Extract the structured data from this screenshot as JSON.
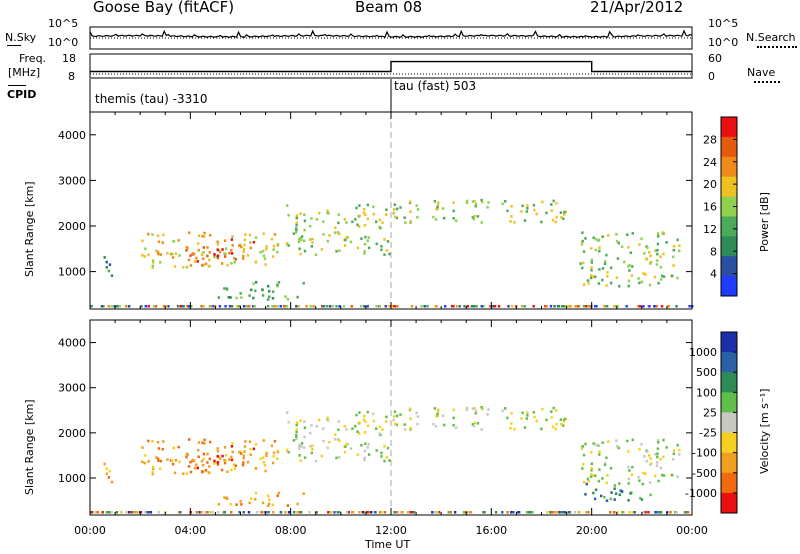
{
  "header": {
    "station": "Goose Bay (fitACF)",
    "beam": "Beam 08",
    "date": "21/Apr/2012"
  },
  "side_labels": {
    "nsky": "N.Sky",
    "nsearch": "N.Search",
    "freq_line1": "Freq.",
    "freq_line2": "[MHz]",
    "nave": "Nave",
    "cpid": "CPID"
  },
  "noise_panel": {
    "left_ticks": [
      "10^5",
      "10^0"
    ],
    "right_ticks": [
      "10^5",
      "10^0"
    ]
  },
  "freq_panel": {
    "left_ticks": [
      "18",
      "8"
    ],
    "right_ticks": [
      "60",
      "0"
    ]
  },
  "cpid_panel": {
    "labels": [
      "themis (tau) -3310",
      "tau (fast) 503"
    ]
  },
  "colors": {
    "power_scale": [
      "#1e3cff",
      "#2a4ea0",
      "#2e8b57",
      "#4daa5a",
      "#8fd14f",
      "#f0c020",
      "#f08a1a",
      "#e65a10",
      "#e81010"
    ],
    "velocity_scale": [
      "#1b2fa8",
      "#2a60a8",
      "#2e8b57",
      "#5fbf4a",
      "#c8c8c0",
      "#f5d020",
      "#f0a020",
      "#f06a10",
      "#e81010"
    ],
    "ground_scatter": "#c0c0b8"
  },
  "chart_data": [
    {
      "type": "line",
      "name": "noise",
      "x": [
        "00:00",
        "04:00",
        "08:00",
        "12:00",
        "16:00",
        "20:00",
        "00:00"
      ],
      "series": [
        {
          "name": "N.Sky",
          "values": [
            3.2,
            3.1,
            3.0,
            3.0,
            3.1,
            3.1,
            3.2
          ]
        }
      ],
      "ylim_labels": [
        "10^0",
        "10^5"
      ]
    },
    {
      "type": "line",
      "name": "frequency",
      "x": [
        "00:00",
        "12:00",
        "12:00",
        "20:00",
        "20:00",
        "00:00"
      ],
      "series": [
        {
          "name": "Freq.",
          "values": [
            10.5,
            10.5,
            15,
            15,
            10.5,
            10.5
          ]
        }
      ],
      "ylim": [
        8,
        18
      ]
    },
    {
      "type": "heatmap",
      "name": "power",
      "xlabel": "",
      "ylabel": "Slant Range [km]",
      "y_ticks": [
        "1000",
        "2000",
        "3000",
        "4000"
      ],
      "ylim": [
        180,
        4500
      ],
      "colorbar_label": "Power [dB]",
      "colorbar_ticks": [
        "4",
        "8",
        "12",
        "16",
        "20",
        "24",
        "28"
      ],
      "regions": [
        {
          "t0": 0.5,
          "t1": 1.0,
          "r0": 900,
          "r1": 1400,
          "level": 2
        },
        {
          "t0": 2.0,
          "t1": 7.5,
          "r0": 1100,
          "r1": 1900,
          "level": 5
        },
        {
          "t0": 3.8,
          "t1": 6.5,
          "r0": 1250,
          "r1": 1750,
          "level": 7
        },
        {
          "t0": 7.8,
          "t1": 11.9,
          "r0": 1400,
          "r1": 2500,
          "level": 4
        },
        {
          "t0": 12.0,
          "t1": 19.0,
          "r0": 2100,
          "r1": 2600,
          "level": 4
        },
        {
          "t0": 19.5,
          "t1": 23.5,
          "r0": 700,
          "r1": 1900,
          "level": 4
        },
        {
          "t0": 5.0,
          "t1": 8.5,
          "r0": 400,
          "r1": 800,
          "level": 3
        }
      ]
    },
    {
      "type": "heatmap",
      "name": "velocity",
      "xlabel": "Time UT",
      "ylabel": "Slant Range [km]",
      "x_ticks": [
        "00:00",
        "04:00",
        "08:00",
        "12:00",
        "16:00",
        "20:00",
        "00:00"
      ],
      "y_ticks": [
        "1000",
        "2000",
        "3000",
        "4000"
      ],
      "ylim": [
        180,
        4500
      ],
      "colorbar_label": "Velocity [m s⁻¹]",
      "colorbar_ticks": [
        "1000",
        "500",
        "100",
        "25",
        "-25",
        "-100",
        "-500",
        "-1000"
      ],
      "regions": [
        {
          "t0": 0.5,
          "t1": 1.0,
          "r0": 900,
          "r1": 1400,
          "level": 6
        },
        {
          "t0": 2.0,
          "t1": 7.5,
          "r0": 1100,
          "r1": 1900,
          "level": 6
        },
        {
          "t0": 3.8,
          "t1": 6.5,
          "r0": 1250,
          "r1": 1750,
          "level": 7
        },
        {
          "t0": 7.8,
          "t1": 11.9,
          "r0": 1400,
          "r1": 2500,
          "level": 4
        },
        {
          "t0": 12.0,
          "t1": 19.0,
          "r0": 2100,
          "r1": 2600,
          "level": 4
        },
        {
          "t0": 19.5,
          "t1": 23.5,
          "r0": 900,
          "r1": 1900,
          "level": 4
        },
        {
          "t0": 19.7,
          "t1": 22.5,
          "r0": 500,
          "r1": 900,
          "level": 2
        },
        {
          "t0": 5.0,
          "t1": 8.5,
          "r0": 400,
          "r1": 700,
          "level": 6
        }
      ]
    }
  ]
}
